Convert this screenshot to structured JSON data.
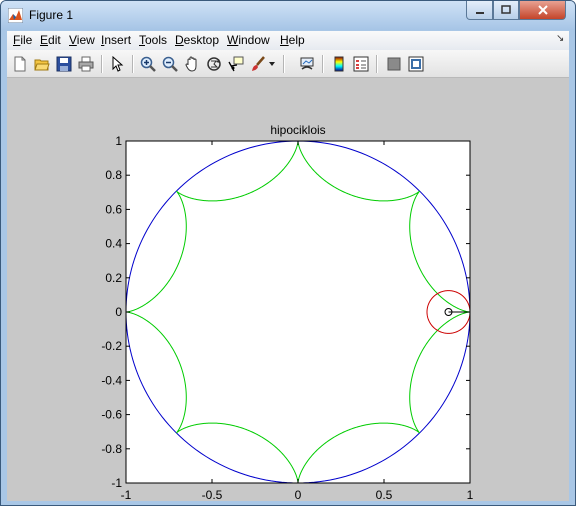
{
  "window": {
    "title": "Figure 1"
  },
  "menu": [
    "File",
    "Edit",
    "View",
    "Insert",
    "Tools",
    "Desktop",
    "Window",
    "Help"
  ],
  "toolbar": {
    "icons": [
      "new-figure-icon",
      "open-file-icon",
      "save-icon",
      "print-icon",
      "edit-plot-arrow-icon",
      "zoom-in-icon",
      "zoom-out-icon",
      "pan-hand-icon",
      "rotate-3d-icon",
      "data-cursor-icon",
      "brush-icon",
      "brush-dropdown-icon",
      "link-plot-icon",
      "insert-colorbar-icon",
      "insert-legend-icon",
      "hide-plot-tools-icon",
      "show-plot-tools-icon"
    ]
  },
  "chart_data": {
    "type": "line",
    "title": "hipociklois",
    "xlim": [
      -1,
      1
    ],
    "ylim": [
      -1,
      1
    ],
    "xticks": [
      -1,
      -0.5,
      0,
      0.5,
      1
    ],
    "xtick_labels": [
      "-1",
      "-0.5",
      "0",
      "0.5",
      "1"
    ],
    "yticks": [
      -1,
      -0.8,
      -0.6,
      -0.4,
      -0.2,
      0,
      0.2,
      0.4,
      0.6,
      0.8,
      1
    ],
    "ytick_labels": [
      "-1",
      "-0.8",
      "-0.6",
      "-0.4",
      "-0.2",
      "0",
      "0.2",
      "0.4",
      "0.6",
      "0.8",
      "1"
    ],
    "grid": false,
    "series": [
      {
        "kind": "circle",
        "color": "#0000cc",
        "center": [
          0,
          0
        ],
        "radius": 1
      },
      {
        "kind": "hypocycloid",
        "color": "#00cc00",
        "R": 1,
        "cusps": 8
      },
      {
        "kind": "circle",
        "color": "#cc0000",
        "center": [
          0.875,
          0
        ],
        "radius": 0.125
      },
      {
        "kind": "segment",
        "color": "#000000",
        "from": [
          0.875,
          0
        ],
        "to": [
          1,
          0
        ]
      },
      {
        "kind": "point",
        "color": "#000000",
        "at": [
          0.875,
          0
        ]
      }
    ]
  }
}
